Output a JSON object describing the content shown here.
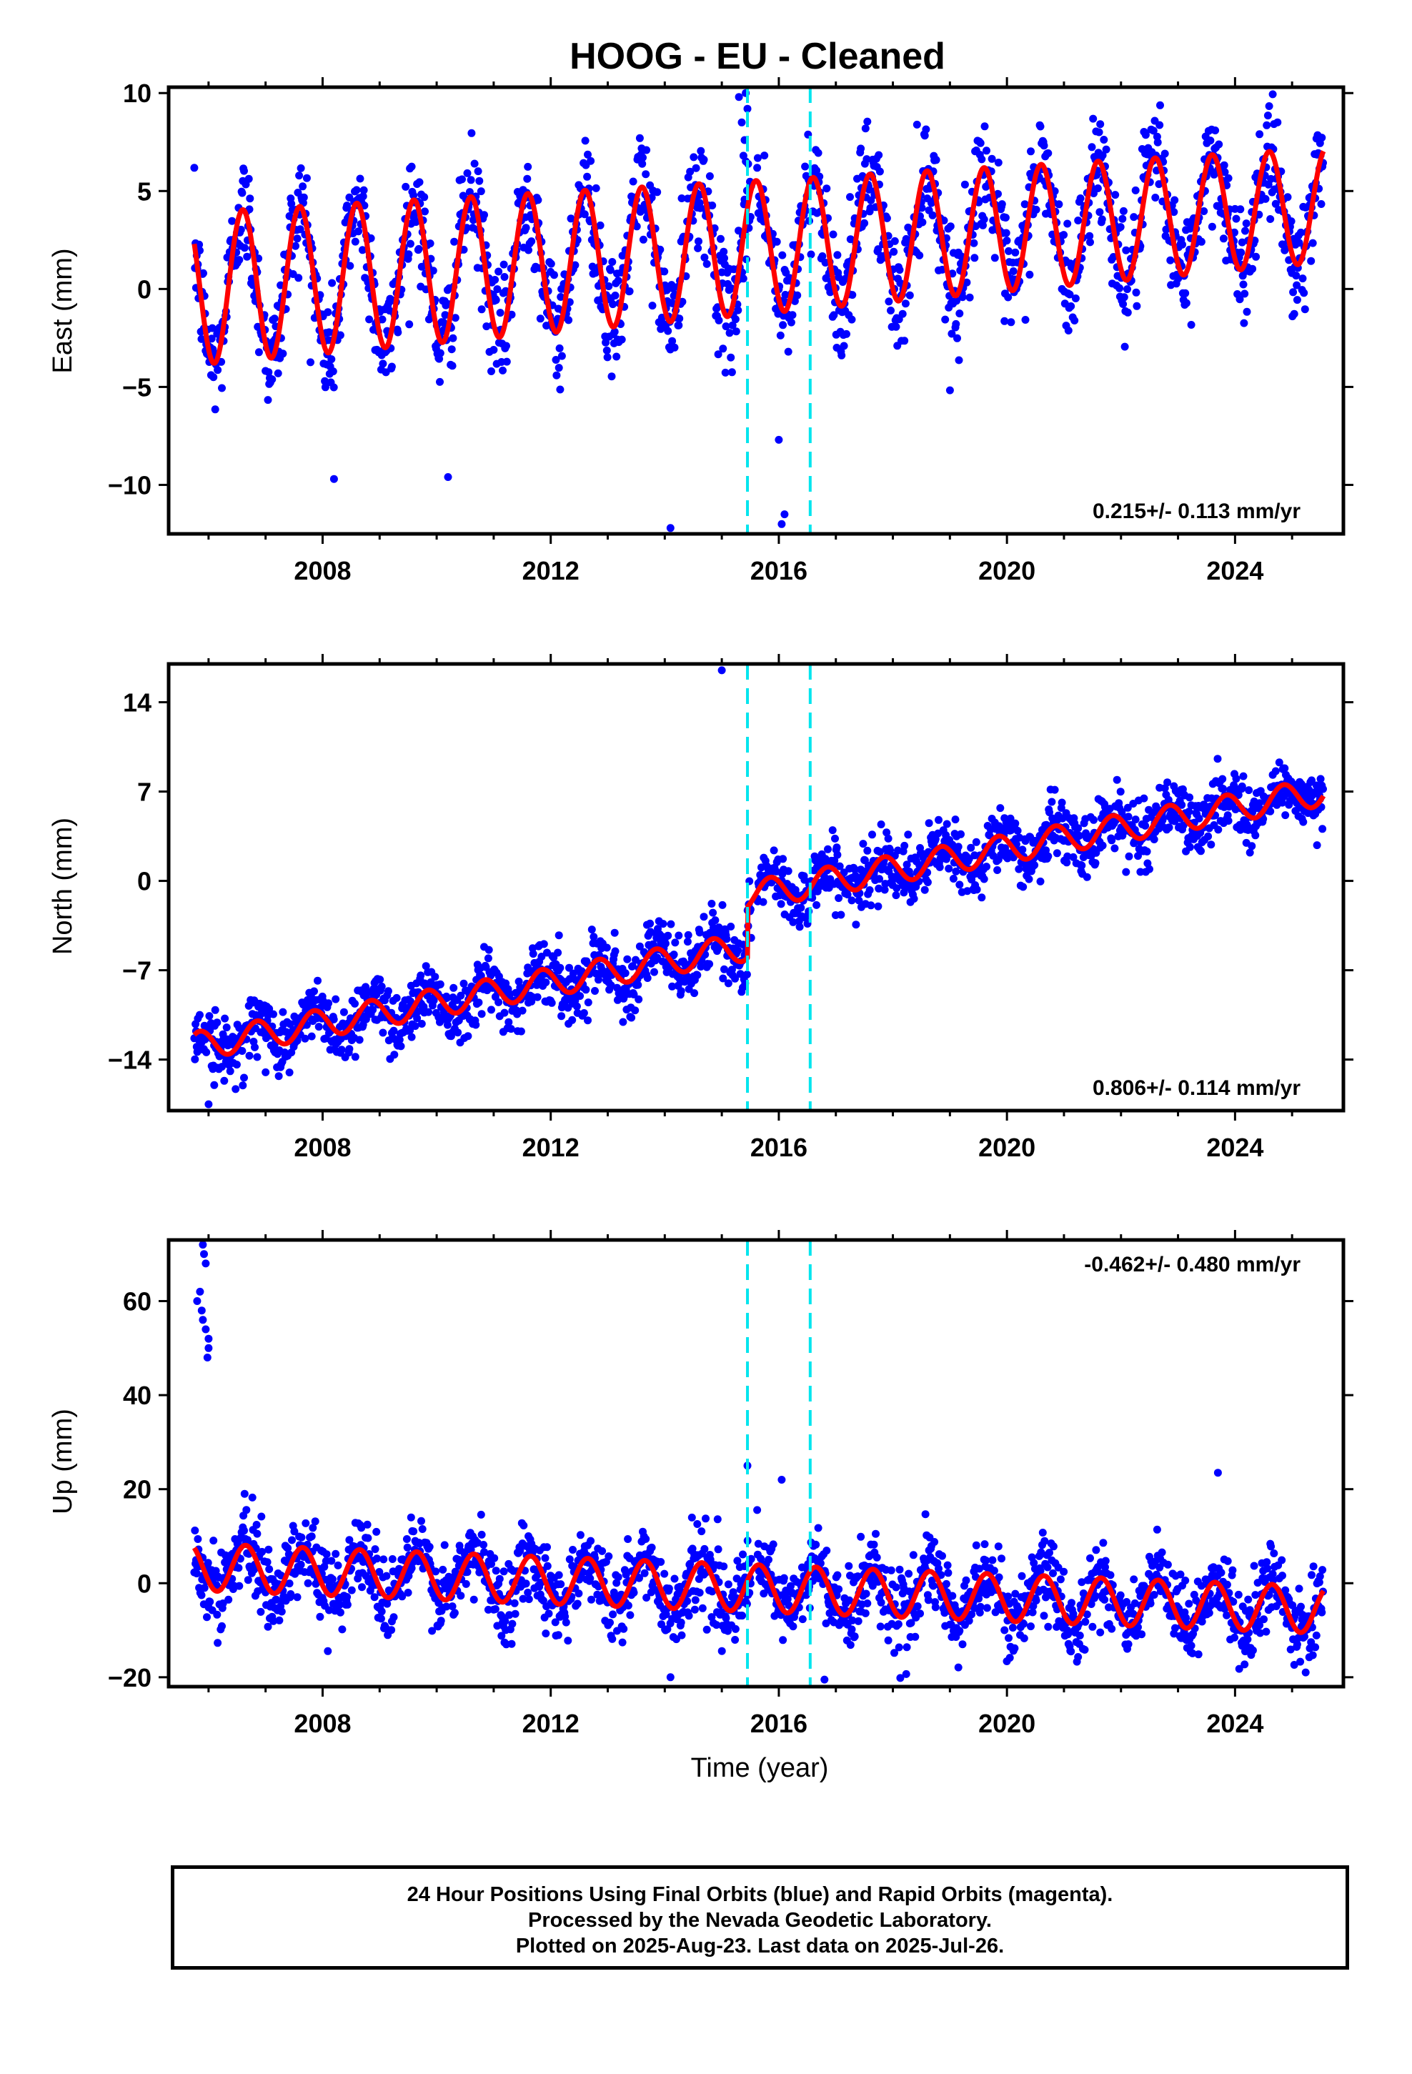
{
  "chart_data": {
    "type": "scatter",
    "title": "HOOG  - EU - Cleaned",
    "xlabel": "Time (year)",
    "xlim": [
      2005.3,
      2025.9
    ],
    "x_ticks": [
      2008,
      2012,
      2016,
      2020,
      2024
    ],
    "x_tick_labels": [
      "2008",
      "2012",
      "2016",
      "2020",
      "2024"
    ],
    "offset_lines_year": [
      2015.45,
      2016.55
    ],
    "colors": {
      "final_orbit_points": "#0000ff",
      "model_fit": "#ff0000",
      "offsets": "#00e5ee"
    },
    "grid": false,
    "panels": [
      {
        "name": "East",
        "ylabel": "East (mm)",
        "ylim": [
          -12.5,
          10.3
        ],
        "y_ticks": [
          10,
          5,
          0,
          -5,
          -10
        ],
        "y_tick_labels": [
          "10",
          "5",
          "0",
          "−5",
          "−10"
        ],
        "rate_label": "0.215+/- 0.113 mm/yr",
        "rate_position": "bottom-right",
        "model": {
          "t0": 2005.7,
          "start": 0.0,
          "trend": 0.215,
          "amplitude": 3.9,
          "amplitude_growth": -0.05,
          "phase": 0.35,
          "offsets": []
        },
        "noise": 1.4,
        "outliers": [
          [
            2015.3,
            9.8
          ],
          [
            2015.35,
            8.5
          ],
          [
            2015.4,
            7.6
          ],
          [
            2015.45,
            9.2
          ],
          [
            2015.38,
            6.8
          ],
          [
            2015.42,
            10.0
          ],
          [
            2014.1,
            -12.2
          ],
          [
            2016.0,
            -7.7
          ],
          [
            2016.05,
            -12.0
          ],
          [
            2016.1,
            -11.5
          ],
          [
            2010.2,
            -9.6
          ],
          [
            2008.2,
            -9.7
          ]
        ]
      },
      {
        "name": "North",
        "ylabel": "North (mm)",
        "ylim": [
          -18,
          17
        ],
        "y_ticks": [
          14,
          7,
          0,
          -7,
          -14
        ],
        "y_tick_labels": [
          "14",
          "7",
          "0",
          "−7",
          "−14"
        ],
        "rate_label": "0.806+/- 0.114 mm/yr",
        "rate_position": "bottom-right",
        "model": {
          "t0": 2005.7,
          "start": -13.0,
          "trend": 0.806,
          "amplitude": 1.1,
          "amplitude_growth": 0.0,
          "phase": 0.6,
          "offsets": [
            [
              2015.45,
              4.0
            ]
          ]
        },
        "noise": 1.2,
        "outliers": [
          [
            2015.0,
            16.5
          ],
          [
            2006.0,
            -17.5
          ],
          [
            2006.1,
            -16.0
          ],
          [
            2007.0,
            -15.0
          ]
        ]
      },
      {
        "name": "Up",
        "ylabel": "Up (mm)",
        "ylim": [
          -22,
          73
        ],
        "y_ticks": [
          60,
          40,
          20,
          0,
          -20
        ],
        "y_tick_labels": [
          "60",
          "40",
          "20",
          "0",
          "−20"
        ],
        "rate_label": "-0.462+/- 0.480 mm/yr",
        "rate_position": "top-right",
        "model": {
          "t0": 2005.7,
          "start": 3.5,
          "trend": -0.462,
          "amplitude": 5.0,
          "amplitude_growth": 0.0,
          "phase": 0.4,
          "offsets": []
        },
        "noise": 4.2,
        "outliers": [
          [
            2005.9,
            72.0
          ],
          [
            2005.92,
            70.0
          ],
          [
            2005.95,
            68.0
          ],
          [
            2005.85,
            62.0
          ],
          [
            2005.8,
            60.0
          ],
          [
            2005.88,
            58.0
          ],
          [
            2005.9,
            56.0
          ],
          [
            2005.95,
            54.0
          ],
          [
            2006.0,
            52.0
          ],
          [
            2006.0,
            50.0
          ],
          [
            2005.98,
            48.0
          ],
          [
            2015.45,
            25.0
          ],
          [
            2016.05,
            22.0
          ],
          [
            2023.7,
            23.5
          ],
          [
            2014.1,
            -20.0
          ],
          [
            2016.8,
            -20.5
          ]
        ]
      }
    ]
  },
  "footer": {
    "line1": "24 Hour Positions Using Final Orbits (blue) and Rapid Orbits (magenta).",
    "line2": "Processed by the Nevada Geodetic Laboratory.",
    "line3": "Plotted on 2025-Aug-23. Last data on 2025-Jul-26."
  }
}
